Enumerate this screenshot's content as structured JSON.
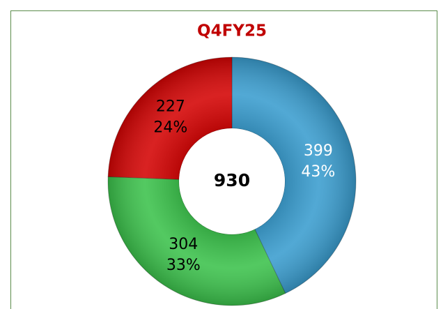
{
  "chart_data": {
    "type": "pie",
    "donut": true,
    "title": "Q4FY25",
    "values": [
      399,
      304,
      227
    ],
    "percent_labels": [
      "43%",
      "33%",
      "24%"
    ],
    "colors": [
      "#3a9dcf",
      "#3cc24c",
      "#d40404"
    ],
    "label_colors": [
      "#ffffff",
      "#000000",
      "#000000"
    ],
    "total": 930
  }
}
